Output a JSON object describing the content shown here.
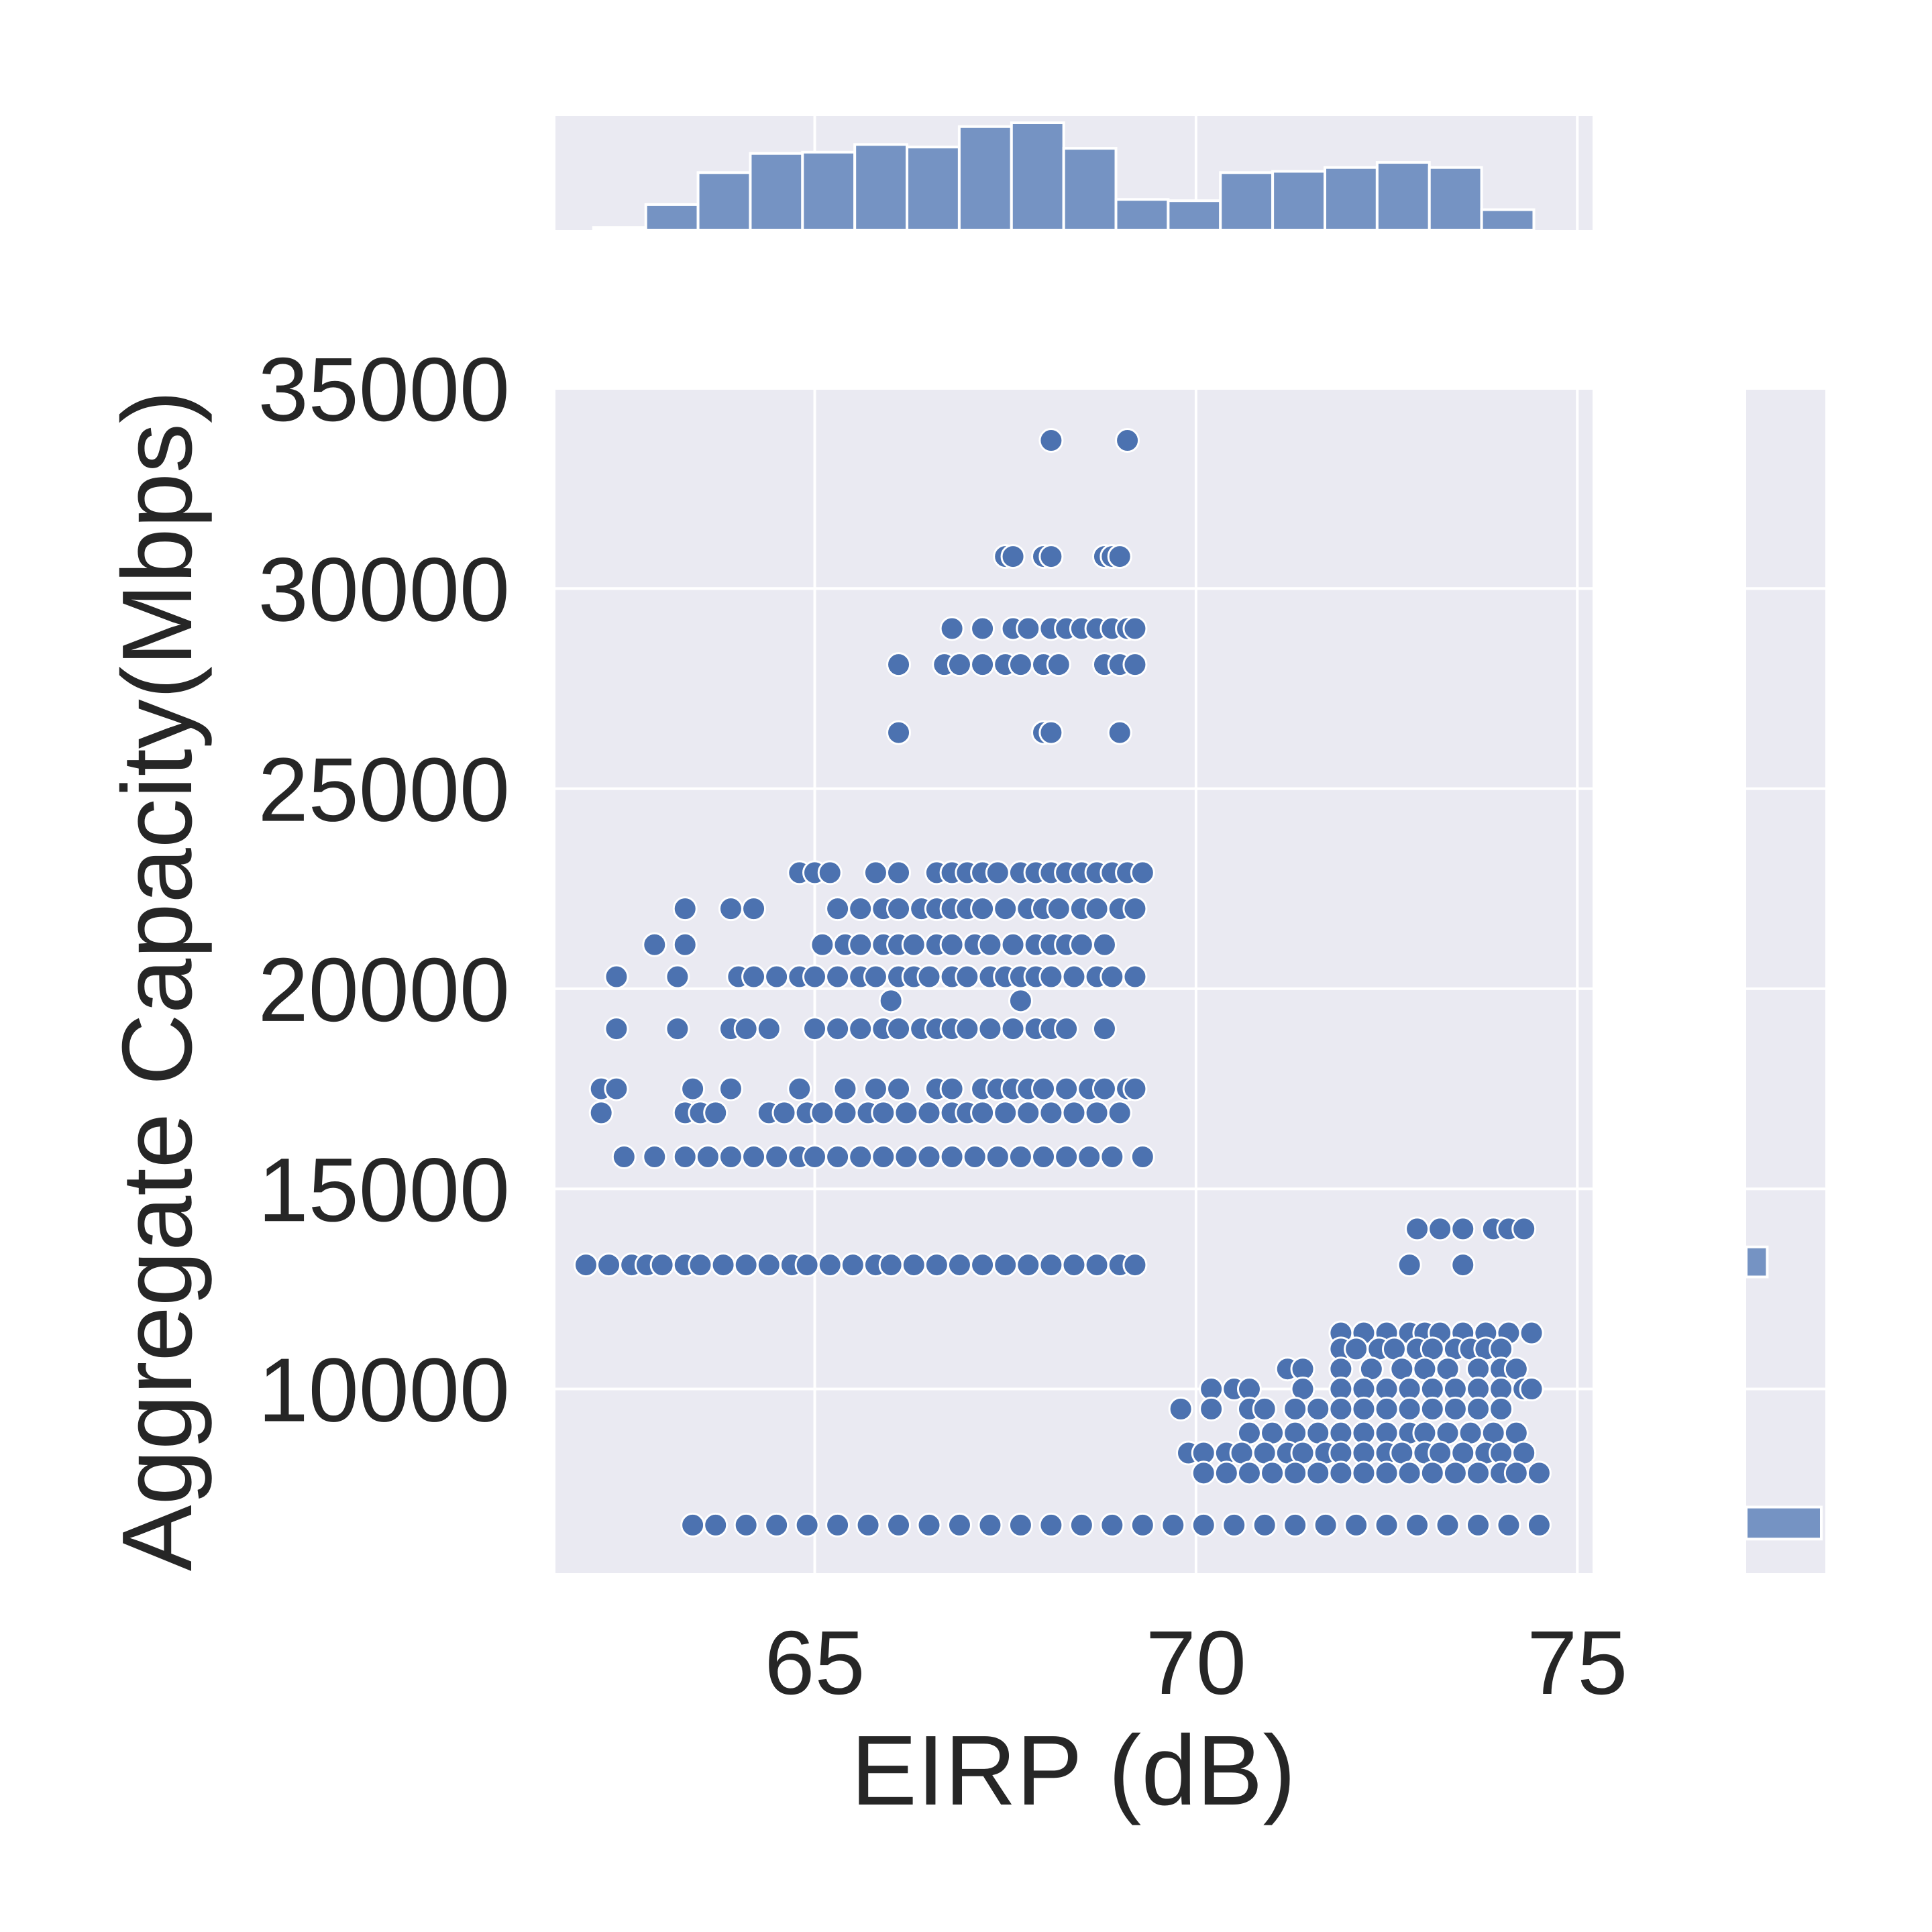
{
  "chart_data": {
    "type": "scatter",
    "title": "",
    "xlabel": "EIRP (dB)",
    "ylabel": "Aggregate Capacity(Mbps)",
    "xlim": [
      61.6,
      75.2
    ],
    "ylim": [
      5400,
      35000
    ],
    "xticks": [
      "65",
      "70",
      "75"
    ],
    "yticks": [
      "10000",
      "15000",
      "20000",
      "25000",
      "30000",
      "35000"
    ],
    "xtick_values": [
      65,
      70,
      75
    ],
    "ytick_values": [
      10000,
      15000,
      20000,
      25000,
      30000,
      35000
    ],
    "grid": true,
    "colors": {
      "point": "#4c72b0",
      "hist": "#7593c3",
      "panel_bg": "#eaeaf2",
      "grid": "#ffffff"
    },
    "rows": [
      {
        "y": 33700,
        "x": [
          68.1,
          69.1
        ]
      },
      {
        "y": 30800,
        "x": [
          67.5,
          67.6,
          68.0,
          68.1,
          68.8,
          68.9,
          69.0
        ]
      },
      {
        "y": 29000,
        "x": [
          66.8,
          67.2,
          67.6,
          67.8,
          68.1,
          68.3,
          68.5,
          68.7,
          68.9,
          69.1,
          69.2
        ]
      },
      {
        "y": 28100,
        "x": [
          66.1,
          66.7,
          66.9,
          67.2,
          67.5,
          67.7,
          68.0,
          68.2,
          68.8,
          69.0,
          69.2
        ]
      },
      {
        "y": 26400,
        "x": [
          66.1,
          68.0,
          68.1,
          69.0
        ]
      },
      {
        "y": 22900,
        "x": [
          64.8,
          65.0,
          65.2,
          65.8,
          66.1,
          66.6,
          66.8,
          67.0,
          67.2,
          67.4,
          67.7,
          67.9,
          68.1,
          68.3,
          68.5,
          68.7,
          68.9,
          69.1,
          69.3
        ]
      },
      {
        "y": 22000,
        "x": [
          63.3,
          63.9,
          64.2,
          65.3,
          65.6,
          65.9,
          66.1,
          66.4,
          66.6,
          66.8,
          67.0,
          67.2,
          67.5,
          67.8,
          68.0,
          68.2,
          68.5,
          68.7,
          69.0,
          69.2
        ]
      },
      {
        "y": 21100,
        "x": [
          62.9,
          63.3,
          65.1,
          65.4,
          65.6,
          65.9,
          66.1,
          66.3,
          66.6,
          66.8,
          67.1,
          67.3,
          67.6,
          67.9,
          68.1,
          68.3,
          68.5,
          68.8
        ]
      },
      {
        "y": 20300,
        "x": [
          62.4,
          63.2,
          64.0,
          64.2,
          64.5,
          64.8,
          65.0,
          65.3,
          65.6,
          65.8,
          66.1,
          66.3,
          66.5,
          66.8,
          67.0,
          67.3,
          67.5,
          67.7,
          67.9,
          68.1,
          68.4,
          68.7,
          68.9,
          69.2
        ]
      },
      {
        "y": 19700,
        "x": [
          66.0,
          67.7
        ]
      },
      {
        "y": 19000,
        "x": [
          62.4,
          63.2,
          63.9,
          64.1,
          64.4,
          65.0,
          65.3,
          65.6,
          65.9,
          66.1,
          66.4,
          66.6,
          66.8,
          67.0,
          67.3,
          67.6,
          67.9,
          68.1,
          68.3,
          68.8
        ]
      },
      {
        "y": 17500,
        "x": [
          62.2,
          62.4,
          63.4,
          63.9,
          64.8,
          65.4,
          65.8,
          66.1,
          66.6,
          66.8,
          67.2,
          67.4,
          67.6,
          67.8,
          68.0,
          68.3,
          68.6,
          68.8,
          69.1,
          69.2
        ]
      },
      {
        "y": 16900,
        "x": [
          62.2,
          63.3,
          63.5,
          63.7,
          64.4,
          64.6,
          64.9,
          65.1,
          65.4,
          65.7,
          65.9,
          66.2,
          66.5,
          66.8,
          67.0,
          67.2,
          67.5,
          67.8,
          68.1,
          68.4,
          68.7,
          69.0
        ]
      },
      {
        "y": 15800,
        "x": [
          62.5,
          62.9,
          63.3,
          63.6,
          63.9,
          64.2,
          64.5,
          64.8,
          65.0,
          65.3,
          65.6,
          65.9,
          66.2,
          66.5,
          66.8,
          67.1,
          67.4,
          67.7,
          68.0,
          68.3,
          68.6,
          68.9,
          69.3
        ]
      },
      {
        "y": 14000,
        "x": [
          72.9,
          73.2,
          73.5,
          73.9,
          74.1,
          74.3
        ]
      },
      {
        "y": 13100,
        "x": [
          62.0,
          62.3,
          62.6,
          62.8,
          63.0,
          63.3,
          63.5,
          63.8,
          64.1,
          64.4,
          64.7,
          64.9,
          65.2,
          65.5,
          65.8,
          66.0,
          66.3,
          66.6,
          66.9,
          67.2,
          67.5,
          67.8,
          68.1,
          68.4,
          68.7,
          69.0,
          69.2,
          72.8,
          73.5
        ]
      },
      {
        "y": 11400,
        "x": [
          71.9,
          72.2,
          72.5,
          72.8,
          73.0,
          73.2,
          73.5,
          73.8,
          74.1,
          74.4
        ]
      },
      {
        "y": 11000,
        "x": [
          71.9,
          72.1,
          72.4,
          72.6,
          72.9,
          73.1,
          73.4,
          73.6,
          73.8,
          74.0
        ]
      },
      {
        "y": 10500,
        "x": [
          71.2,
          71.4,
          71.9,
          72.3,
          72.7,
          73.0,
          73.3,
          73.7,
          74.0,
          74.2
        ]
      },
      {
        "y": 10000,
        "x": [
          70.2,
          70.5,
          70.7,
          71.4,
          71.9,
          72.2,
          72.5,
          72.8,
          73.1,
          73.4,
          73.7,
          74.0,
          74.3,
          74.4
        ]
      },
      {
        "y": 9500,
        "x": [
          69.8,
          70.2,
          70.7,
          70.9,
          71.3,
          71.6,
          71.9,
          72.2,
          72.5,
          72.8,
          73.1,
          73.4,
          73.7,
          74.0
        ]
      },
      {
        "y": 8900,
        "x": [
          70.7,
          71.0,
          71.3,
          71.6,
          71.9,
          72.2,
          72.5,
          72.8,
          73.0,
          73.3,
          73.6,
          73.9,
          74.2
        ]
      },
      {
        "y": 8400,
        "x": [
          69.9,
          70.1,
          70.4,
          70.6,
          70.9,
          71.2,
          71.4,
          71.7,
          71.9,
          72.2,
          72.5,
          72.7,
          73.0,
          73.2,
          73.5,
          73.8,
          74.0,
          74.3
        ]
      },
      {
        "y": 7900,
        "x": [
          70.1,
          70.4,
          70.7,
          71.0,
          71.3,
          71.6,
          71.9,
          72.2,
          72.5,
          72.8,
          73.1,
          73.4,
          73.7,
          74.0,
          74.2,
          74.5
        ]
      },
      {
        "y": 6600,
        "x": [
          63.4,
          63.7,
          64.1,
          64.5,
          64.9,
          65.3,
          65.7,
          66.1,
          66.5,
          66.9,
          67.3,
          67.7,
          68.1,
          68.5,
          68.9,
          69.3,
          69.7,
          70.1,
          70.5,
          70.9,
          71.3,
          71.7,
          72.1,
          72.5,
          72.9,
          73.3,
          73.7,
          74.1,
          74.5
        ]
      }
    ],
    "x_histogram": {
      "bin_start": 62.1,
      "bin_width": 0.685,
      "counts": [
        2,
        20,
        45,
        60,
        61,
        67,
        65,
        81,
        84,
        64,
        24,
        23,
        45,
        46,
        49,
        53,
        49,
        16
      ]
    },
    "y_histogram": {
      "bins": [
        {
          "from": 6250,
          "to": 7050,
          "count": 100
        },
        {
          "from": 12800,
          "to": 13550,
          "count": 28
        }
      ]
    }
  }
}
